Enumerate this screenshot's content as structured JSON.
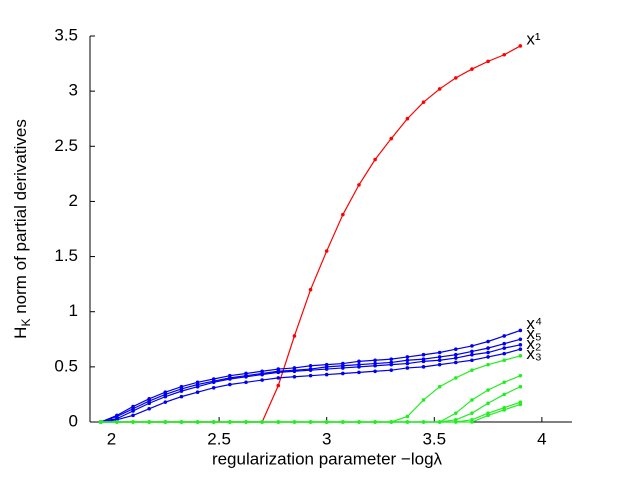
{
  "chart_data": {
    "type": "line",
    "y_label": "H",
    "y_label_sub": "K",
    "y_label_rest": " norm of partial derivatives",
    "x_label": "regularization parameter −logλ",
    "x": [
      1.95,
      2.025,
      2.1,
      2.175,
      2.25,
      2.325,
      2.4,
      2.475,
      2.55,
      2.625,
      2.7,
      2.775,
      2.85,
      2.925,
      3.0,
      3.075,
      3.15,
      3.225,
      3.3,
      3.375,
      3.45,
      3.525,
      3.6,
      3.675,
      3.75,
      3.825,
      3.9
    ],
    "series": [
      {
        "name": "x¹",
        "color": "#ff0000",
        "values": [
          0,
          0,
          0,
          0,
          0,
          0,
          0,
          0,
          0,
          0,
          0,
          0.33,
          0.78,
          1.2,
          1.55,
          1.88,
          2.15,
          2.38,
          2.57,
          2.75,
          2.9,
          3.02,
          3.12,
          3.2,
          3.27,
          3.33,
          3.41
        ]
      },
      {
        "name": "x⁴",
        "color": "#0000ee",
        "values": [
          0,
          0.06,
          0.14,
          0.21,
          0.27,
          0.32,
          0.36,
          0.39,
          0.42,
          0.44,
          0.46,
          0.48,
          0.49,
          0.51,
          0.52,
          0.53,
          0.55,
          0.56,
          0.57,
          0.59,
          0.61,
          0.63,
          0.66,
          0.69,
          0.73,
          0.78,
          0.83
        ]
      },
      {
        "name": "x₅",
        "color": "#0000ee",
        "values": [
          0,
          0.05,
          0.12,
          0.19,
          0.25,
          0.3,
          0.34,
          0.37,
          0.4,
          0.42,
          0.44,
          0.46,
          0.47,
          0.48,
          0.5,
          0.51,
          0.52,
          0.53,
          0.54,
          0.56,
          0.57,
          0.59,
          0.61,
          0.64,
          0.67,
          0.71,
          0.75
        ]
      },
      {
        "name": "x₂",
        "color": "#0000ee",
        "values": [
          0,
          0.03,
          0.1,
          0.17,
          0.23,
          0.28,
          0.32,
          0.36,
          0.39,
          0.41,
          0.43,
          0.45,
          0.46,
          0.47,
          0.48,
          0.49,
          0.5,
          0.51,
          0.52,
          0.53,
          0.55,
          0.56,
          0.58,
          0.61,
          0.63,
          0.67,
          0.7
        ]
      },
      {
        "name": "x₃",
        "color": "#0000ee",
        "values": [
          0,
          0.02,
          0.06,
          0.12,
          0.18,
          0.23,
          0.27,
          0.31,
          0.34,
          0.36,
          0.38,
          0.4,
          0.41,
          0.42,
          0.43,
          0.44,
          0.45,
          0.46,
          0.47,
          0.49,
          0.5,
          0.52,
          0.54,
          0.56,
          0.59,
          0.62,
          0.66
        ]
      },
      {
        "color": "#22ee22",
        "values": [
          0,
          0,
          0,
          0,
          0,
          0,
          0,
          0,
          0,
          0,
          0,
          0,
          0,
          0,
          0,
          0,
          0,
          0,
          0,
          0.05,
          0.2,
          0.32,
          0.4,
          0.47,
          0.52,
          0.56,
          0.6
        ]
      },
      {
        "color": "#22ee22",
        "values": [
          0,
          0,
          0,
          0,
          0,
          0,
          0,
          0,
          0,
          0,
          0,
          0,
          0,
          0,
          0,
          0,
          0,
          0,
          0,
          0,
          0,
          0,
          0.08,
          0.2,
          0.29,
          0.36,
          0.42
        ]
      },
      {
        "color": "#22ee22",
        "values": [
          0,
          0,
          0,
          0,
          0,
          0,
          0,
          0,
          0,
          0,
          0,
          0,
          0,
          0,
          0,
          0,
          0,
          0,
          0,
          0,
          0,
          0,
          0.02,
          0.08,
          0.17,
          0.25,
          0.32
        ]
      },
      {
        "color": "#22ee22",
        "values": [
          0,
          0,
          0,
          0,
          0,
          0,
          0,
          0,
          0,
          0,
          0,
          0,
          0,
          0,
          0,
          0,
          0,
          0,
          0,
          0,
          0,
          0,
          0,
          0.02,
          0.08,
          0.13,
          0.18
        ]
      },
      {
        "color": "#22ee22",
        "values": [
          0,
          0,
          0,
          0,
          0,
          0,
          0,
          0,
          0,
          0,
          0,
          0,
          0,
          0,
          0,
          0,
          0,
          0,
          0,
          0,
          0,
          0,
          0,
          0,
          0.06,
          0.11,
          0.16
        ]
      }
    ],
    "xlim": [
      1.9,
      4.14
    ],
    "ylim": [
      0,
      3.5
    ],
    "xticks": [
      2,
      2.5,
      3,
      3.5,
      4
    ],
    "yticks": [
      0,
      0.5,
      1,
      1.5,
      2,
      2.5,
      3,
      3.5
    ]
  }
}
